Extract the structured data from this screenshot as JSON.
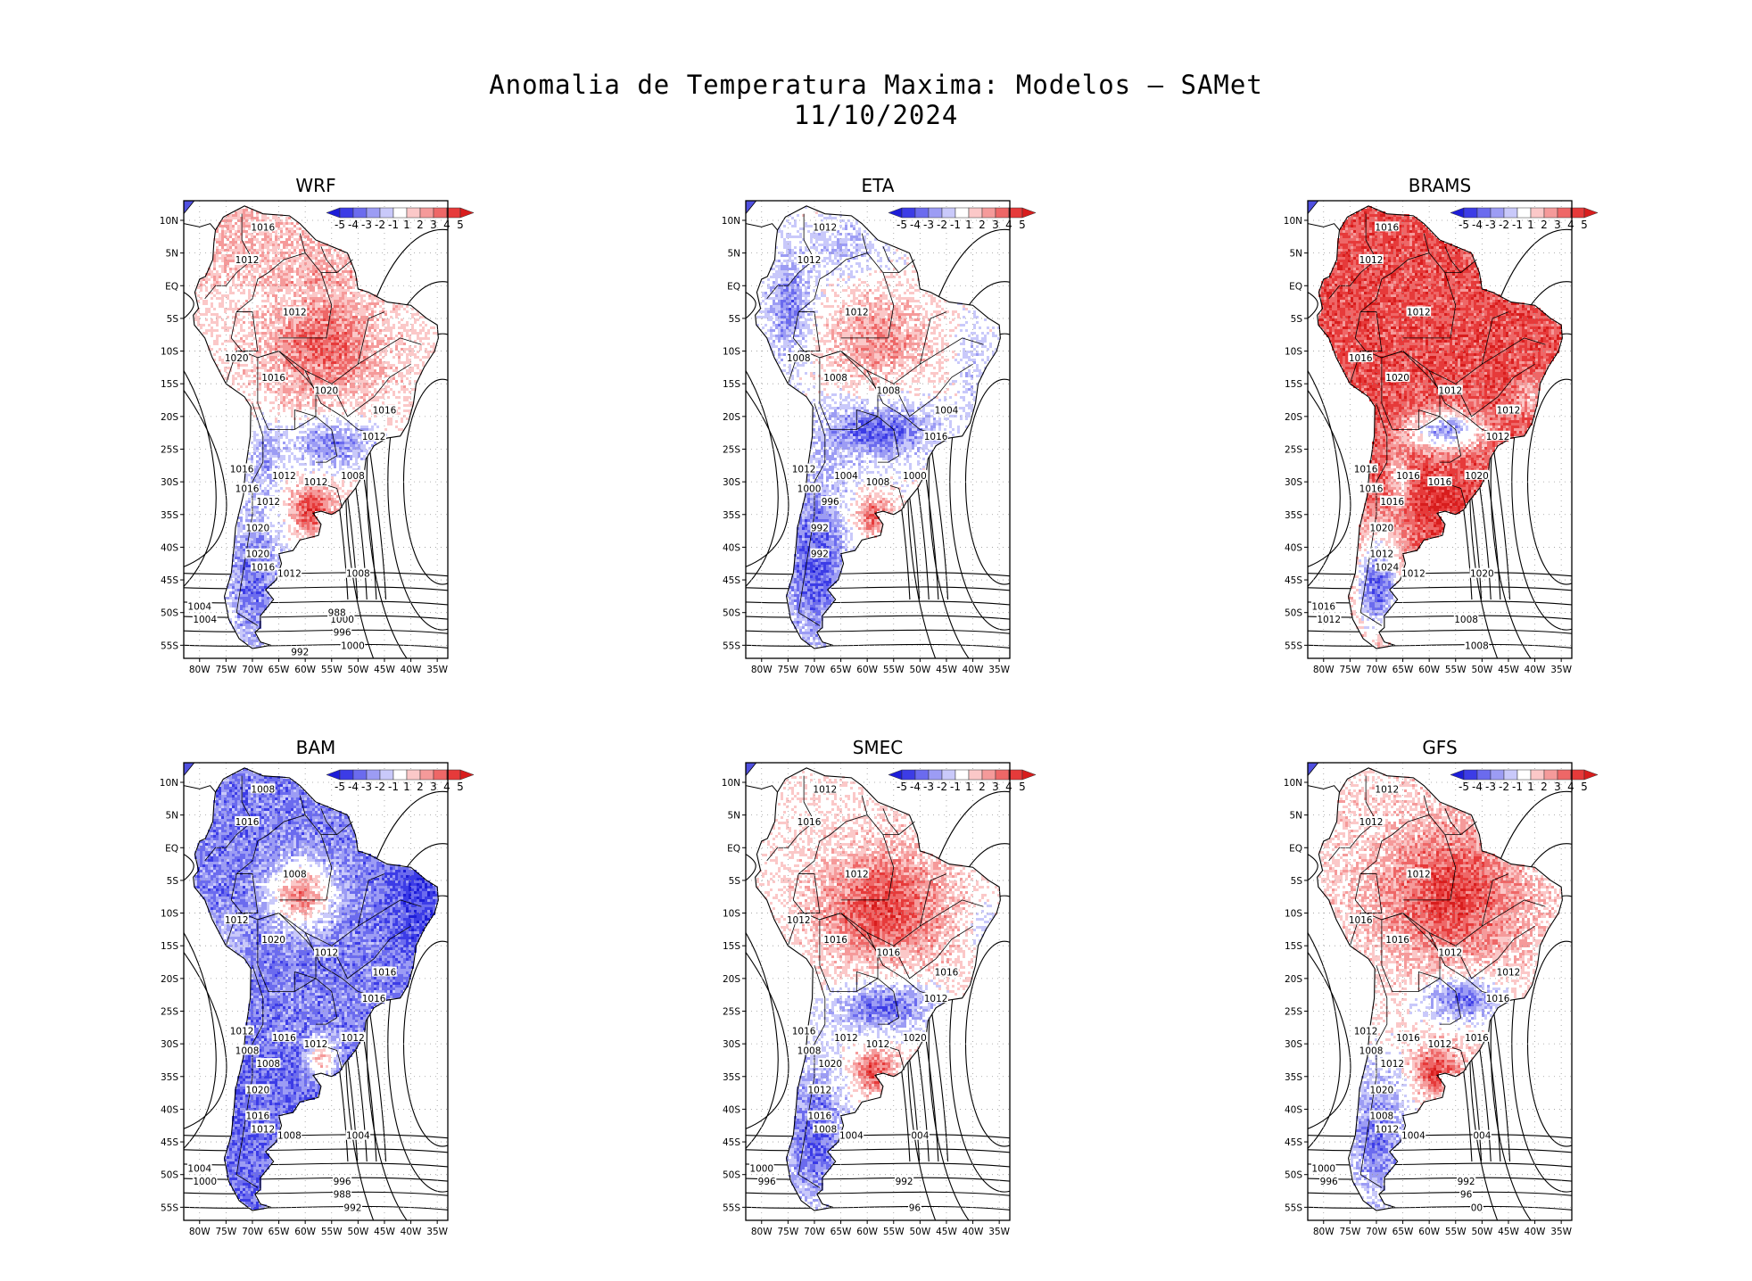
{
  "title": "Anomalia de Temperatura Maxima: Modelos — SAMet",
  "date": "11/10/2024",
  "axes": {
    "lat_labels": [
      "10N",
      "5N",
      "EQ",
      "5S",
      "10S",
      "15S",
      "20S",
      "25S",
      "30S",
      "35S",
      "40S",
      "45S",
      "50S",
      "55S"
    ],
    "lon_labels": [
      "80W",
      "75W",
      "70W",
      "65W",
      "60W",
      "55W",
      "50W",
      "45W",
      "40W",
      "35W"
    ]
  },
  "colorbar": {
    "labels": [
      "-5",
      "-4",
      "-3",
      "-2",
      "-1",
      "1",
      "2",
      "3",
      "4",
      "5"
    ],
    "colors": [
      "#1d1dd8",
      "#3c3ce6",
      "#6b6bee",
      "#9c9cf4",
      "#c9c9fa",
      "#ffffff",
      "#fbc8c8",
      "#f59a9a",
      "#ee6767",
      "#e63a3a",
      "#d81d1d"
    ]
  },
  "panels": [
    {
      "name": "WRF",
      "pattern": "wrf",
      "contours": [
        "1012",
        "1016",
        "1012",
        "1012",
        "1020",
        "1016",
        "1020",
        "1016",
        "1012",
        "1016",
        "1012",
        "1008",
        "1016",
        "1012",
        "1020",
        "1020",
        "1016",
        "1012",
        "1008",
        "1004",
        "1004",
        "1000",
        "1000",
        "996",
        "992",
        "988"
      ]
    },
    {
      "name": "ETA",
      "pattern": "eta",
      "contours": [
        "1008",
        "1012",
        "1012",
        "1012",
        "1008",
        "1008",
        "1008",
        "1004",
        "1016",
        "1012",
        "1004",
        "1000",
        "1000",
        "996",
        "992",
        "992"
      ]
    },
    {
      "name": "BRAMS",
      "pattern": "brams",
      "contours": [
        "1016",
        "1016",
        "1012",
        "1012",
        "1016",
        "1020",
        "1012",
        "1012",
        "1012",
        "1016",
        "1016",
        "1020",
        "1016",
        "1016",
        "1020",
        "1012",
        "1024",
        "1012",
        "1020",
        "1016",
        "1012",
        "1008",
        "1008"
      ]
    },
    {
      "name": "BAM",
      "pattern": "bam",
      "contours": [
        "1012",
        "1008",
        "1016",
        "1008",
        "1012",
        "1020",
        "1012",
        "1016",
        "1016",
        "1012",
        "1016",
        "1012",
        "1008",
        "1008",
        "1020",
        "1016",
        "1012",
        "1008",
        "1004",
        "1004",
        "1000",
        "996",
        "992",
        "988"
      ]
    },
    {
      "name": "SMEC",
      "pattern": "smec",
      "contours": [
        "1012",
        "1012",
        "1016",
        "1012",
        "1012",
        "1016",
        "1016",
        "1016",
        "1012",
        "1016",
        "1012",
        "1020",
        "1008",
        "1020",
        "1012",
        "1016",
        "1008",
        "1004",
        "004",
        "1000",
        "996",
        "992",
        "96"
      ]
    },
    {
      "name": "GFS",
      "pattern": "gfs",
      "contours": [
        "1012",
        "1012",
        "1012",
        "1012",
        "1016",
        "1016",
        "1012",
        "1012",
        "1016",
        "1012",
        "1016",
        "1016",
        "1008",
        "1012",
        "1020",
        "1008",
        "1012",
        "1004",
        "004",
        "1000",
        "996",
        "992",
        "00",
        "96"
      ]
    }
  ]
}
